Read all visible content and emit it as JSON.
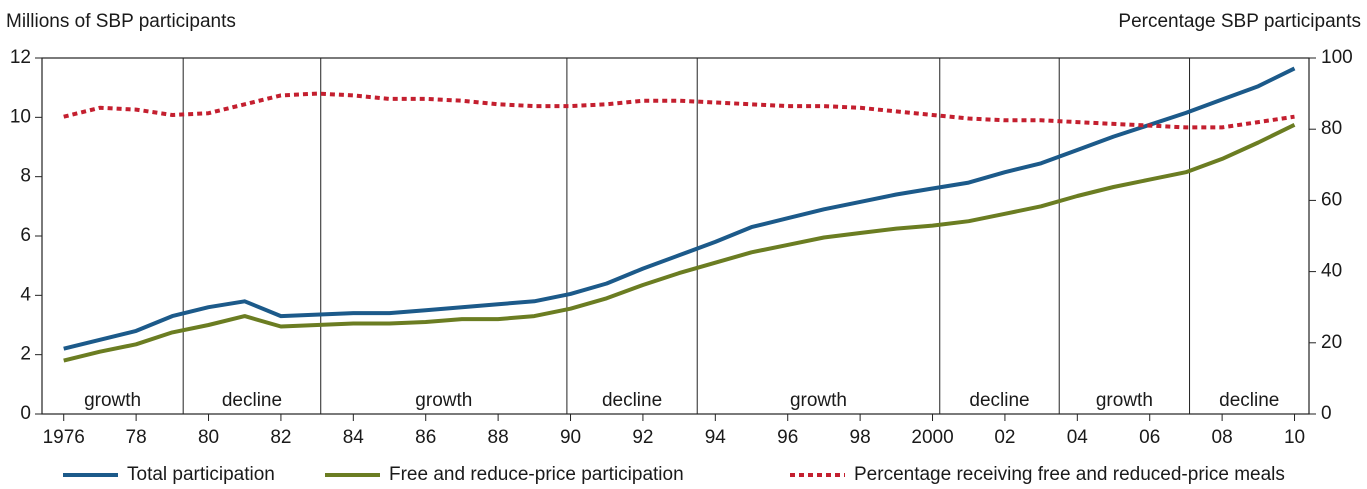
{
  "chart_data": {
    "type": "line",
    "y_label": "Millions of SBP participants",
    "y2_label": "Percentage SBP participants",
    "x": [
      1976,
      1977,
      1978,
      1979,
      1980,
      1981,
      1982,
      1983,
      1984,
      1985,
      1986,
      1987,
      1988,
      1989,
      1990,
      1991,
      1992,
      1993,
      1994,
      1995,
      1996,
      1997,
      1998,
      1999,
      2000,
      2001,
      2002,
      2003,
      2004,
      2005,
      2006,
      2007,
      2008,
      2009,
      2010
    ],
    "series": [
      {
        "name": "Total participation",
        "color": "#1c5a8a",
        "dash": false,
        "values": [
          2.2,
          2.5,
          2.8,
          3.3,
          3.6,
          3.8,
          3.3,
          3.35,
          3.4,
          3.4,
          3.5,
          3.6,
          3.7,
          3.8,
          4.05,
          4.4,
          4.9,
          5.35,
          5.8,
          6.3,
          6.6,
          6.9,
          7.15,
          7.4,
          7.6,
          7.8,
          8.15,
          8.45,
          8.9,
          9.35,
          9.75,
          10.15,
          10.6,
          11.05,
          11.65
        ]
      },
      {
        "name": "Free and reduce-price participation",
        "color": "#6b7d22",
        "dash": false,
        "values": [
          1.8,
          2.1,
          2.35,
          2.75,
          3.0,
          3.3,
          2.95,
          3.0,
          3.05,
          3.05,
          3.1,
          3.2,
          3.2,
          3.3,
          3.55,
          3.9,
          4.35,
          4.75,
          5.1,
          5.45,
          5.7,
          5.95,
          6.1,
          6.25,
          6.35,
          6.5,
          6.75,
          7.0,
          7.35,
          7.65,
          7.9,
          8.15,
          8.6,
          9.15,
          9.75
        ]
      },
      {
        "name": "Percentage receiving free and reduced-price meals",
        "color": "#c41f2f",
        "dash": true,
        "axis": "y2",
        "values": [
          83.5,
          86,
          85.5,
          84,
          84.5,
          87,
          89.5,
          90,
          89.5,
          88.5,
          88.5,
          88,
          87,
          86.5,
          86.5,
          87,
          88,
          88,
          87.5,
          87,
          86.5,
          86.5,
          86,
          85,
          84,
          83,
          82.5,
          82.5,
          82,
          81.5,
          81,
          80.5,
          80.5,
          82,
          83.5
        ]
      }
    ],
    "xlim": [
      1975.4,
      2010.4
    ],
    "xticks": [
      1976,
      {
        "value": 1978,
        "label": "78"
      },
      {
        "value": 1980,
        "label": "80"
      },
      {
        "value": 1982,
        "label": "82"
      },
      {
        "value": 1984,
        "label": "84"
      },
      {
        "value": 1986,
        "label": "86"
      },
      {
        "value": 1988,
        "label": "88"
      },
      {
        "value": 1990,
        "label": "90"
      },
      {
        "value": 1992,
        "label": "92"
      },
      {
        "value": 1994,
        "label": "94"
      },
      {
        "value": 1996,
        "label": "96"
      },
      {
        "value": 1998,
        "label": "98"
      },
      2000,
      {
        "value": 2002,
        "label": "02"
      },
      {
        "value": 2004,
        "label": "04"
      },
      {
        "value": 2006,
        "label": "06"
      },
      {
        "value": 2008,
        "label": "08"
      },
      {
        "value": 2010,
        "label": "10"
      }
    ],
    "ylim": [
      0,
      12
    ],
    "yticks": [
      0,
      2,
      4,
      6,
      8,
      10,
      12
    ],
    "y2lim": [
      0,
      100
    ],
    "y2ticks": [
      0,
      20,
      40,
      60,
      80,
      100
    ],
    "phases": {
      "boundaries": [
        1979.3,
        1983.1,
        1989.9,
        1993.5,
        2000.2,
        2003.5,
        2007.1
      ],
      "labels": [
        "growth",
        "decline",
        "growth",
        "decline",
        "growth",
        "decline",
        "growth",
        "decline"
      ]
    }
  }
}
